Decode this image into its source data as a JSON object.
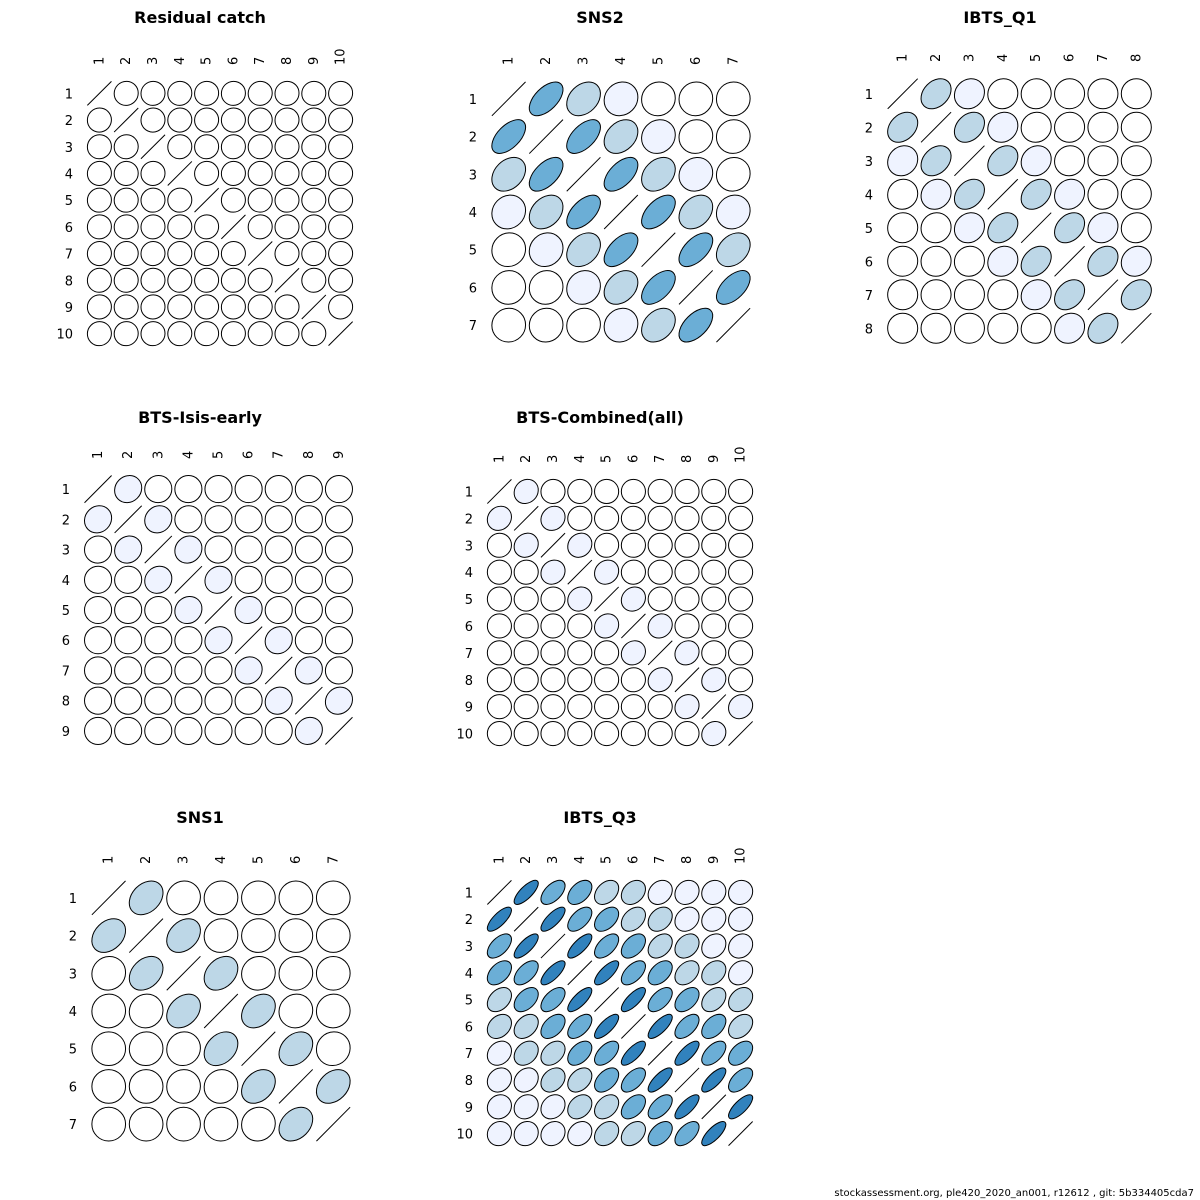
{
  "footer": "stockassessment.org, ple420_2020_an001, r12612 , git: 5b334405cda7",
  "colors": {
    "stroke": "#000000",
    "level0": "#ffffff",
    "level1": "#eff3ff",
    "level2": "#bdd7e7",
    "level3": "#6baed6",
    "level4": "#3182bd"
  },
  "chart_data": [
    {
      "type": "correlation-ellipse-matrix",
      "title": "Residual catch",
      "labels": [
        "1",
        "2",
        "3",
        "4",
        "5",
        "6",
        "7",
        "8",
        "9",
        "10"
      ],
      "correlation": "near-zero off-diagonal (|r| < 0.05)",
      "offdiag_r": 0.02
    },
    {
      "type": "correlation-ellipse-matrix",
      "title": "SNS2",
      "labels": [
        "1",
        "2",
        "3",
        "4",
        "5",
        "6",
        "7"
      ],
      "correlation": "decays with age distance",
      "lag_r": [
        0.55,
        0.3,
        0.1,
        0.05,
        0.03,
        0.02
      ]
    },
    {
      "type": "correlation-ellipse-matrix",
      "title": "IBTS_Q1",
      "labels": [
        "1",
        "2",
        "3",
        "4",
        "5",
        "6",
        "7",
        "8"
      ],
      "correlation": "decays with age distance",
      "lag_r": [
        0.3,
        0.12,
        0.05,
        0.02,
        0.01,
        0.0,
        0.0
      ]
    },
    {
      "type": "correlation-ellipse-matrix",
      "title": "BTS-Isis-early",
      "labels": [
        "1",
        "2",
        "3",
        "4",
        "5",
        "6",
        "7",
        "8",
        "9"
      ],
      "correlation": "weak lag-1 only",
      "lag_r": [
        0.1,
        0.02,
        0.01,
        0.0,
        0.0,
        0.0,
        0.0,
        0.0
      ]
    },
    {
      "type": "correlation-ellipse-matrix",
      "title": "BTS-Combined(all)",
      "labels": [
        "1",
        "2",
        "3",
        "4",
        "5",
        "6",
        "7",
        "8",
        "9",
        "10"
      ],
      "correlation": "weak lag-1 only",
      "lag_r": [
        0.12,
        0.02,
        0.01,
        0.0,
        0.0,
        0.0,
        0.0,
        0.0,
        0.0
      ]
    },
    {
      "type": "correlation-ellipse-matrix",
      "title": "SNS1",
      "labels": [
        "1",
        "2",
        "3",
        "4",
        "5",
        "6",
        "7"
      ],
      "correlation": "decays with age distance",
      "lag_r": [
        0.3,
        0.05,
        0.02,
        0.0,
        0.0,
        0.0
      ]
    },
    {
      "type": "correlation-ellipse-matrix",
      "title": "IBTS_Q3",
      "labels": [
        "1",
        "2",
        "3",
        "4",
        "5",
        "6",
        "7",
        "8",
        "9",
        "10"
      ],
      "correlation": "strong, slowly decaying",
      "lag_r": [
        0.75,
        0.55,
        0.45,
        0.35,
        0.28,
        0.2,
        0.15,
        0.1,
        0.08
      ]
    }
  ]
}
